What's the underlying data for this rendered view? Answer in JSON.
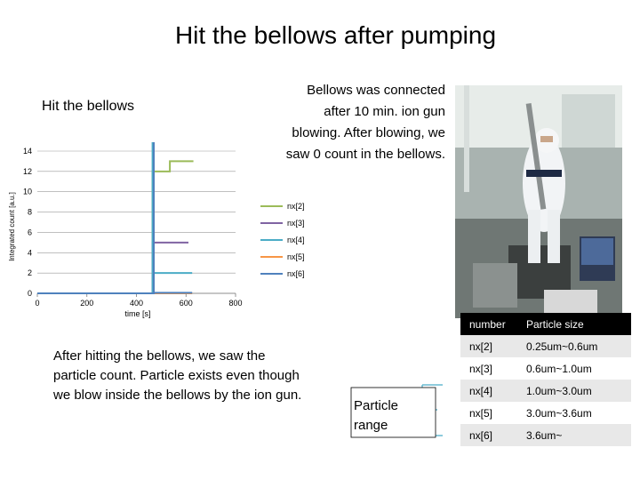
{
  "slide": {
    "title": "Hit the bellows after pumping",
    "bellows_note": "Bellows was connected after 10 min. ion gun blowing. After blowing, we saw 0 count in the bellows.",
    "after_note": "After hitting the bellows, we saw the particle count. Particle exists even though we blow inside the bellows by the ion gun.",
    "range_label": "Particle range"
  },
  "chart_data": {
    "type": "line",
    "title": "Hit the bellows",
    "xlabel": "time [s]",
    "ylabel": "Integrated count [a.u.]",
    "xlim": [
      0,
      800
    ],
    "ylim": [
      0,
      14
    ],
    "xticks": [
      0,
      200,
      400,
      600,
      800
    ],
    "yticks": [
      0,
      2,
      4,
      6,
      8,
      10,
      12,
      14
    ],
    "grid": "horizontal",
    "legend_position": "right",
    "series": [
      {
        "name": "nx[2]",
        "color": "#9bbb59",
        "x": [
          0,
          465,
          465,
          535,
          535,
          630
        ],
        "y": [
          0,
          0,
          12,
          12,
          13,
          13
        ]
      },
      {
        "name": "nx[3]",
        "color": "#8064a2",
        "x": [
          0,
          465,
          465,
          610
        ],
        "y": [
          0,
          0,
          5,
          5
        ]
      },
      {
        "name": "nx[4]",
        "color": "#4bacc6",
        "x": [
          0,
          465,
          465,
          470,
          470,
          505,
          505,
          625
        ],
        "y": [
          0,
          0,
          15.8,
          15.8,
          2,
          2,
          2,
          2
        ]
      },
      {
        "name": "nx[5]",
        "color": "#f79646",
        "x": [
          0,
          625
        ],
        "y": [
          0,
          0
        ]
      },
      {
        "name": "nx[6]",
        "color": "#4f81bd",
        "x": [
          0,
          470,
          470,
          470,
          470,
          625
        ],
        "y": [
          0,
          0,
          12,
          15.8,
          0.05,
          0.05
        ]
      }
    ]
  },
  "table": {
    "headers": [
      "number",
      "Particle size"
    ],
    "rows": [
      [
        "nx[2]",
        "0.25um~0.6um"
      ],
      [
        "nx[3]",
        "0.6um~1.0um"
      ],
      [
        "nx[4]",
        "1.0um~3.0um"
      ],
      [
        "nx[5]",
        "3.0um~3.6um"
      ],
      [
        "nx[6]",
        "3.6um~"
      ]
    ]
  },
  "photo": {
    "description_icon": "cleanroom-worker-photo"
  }
}
